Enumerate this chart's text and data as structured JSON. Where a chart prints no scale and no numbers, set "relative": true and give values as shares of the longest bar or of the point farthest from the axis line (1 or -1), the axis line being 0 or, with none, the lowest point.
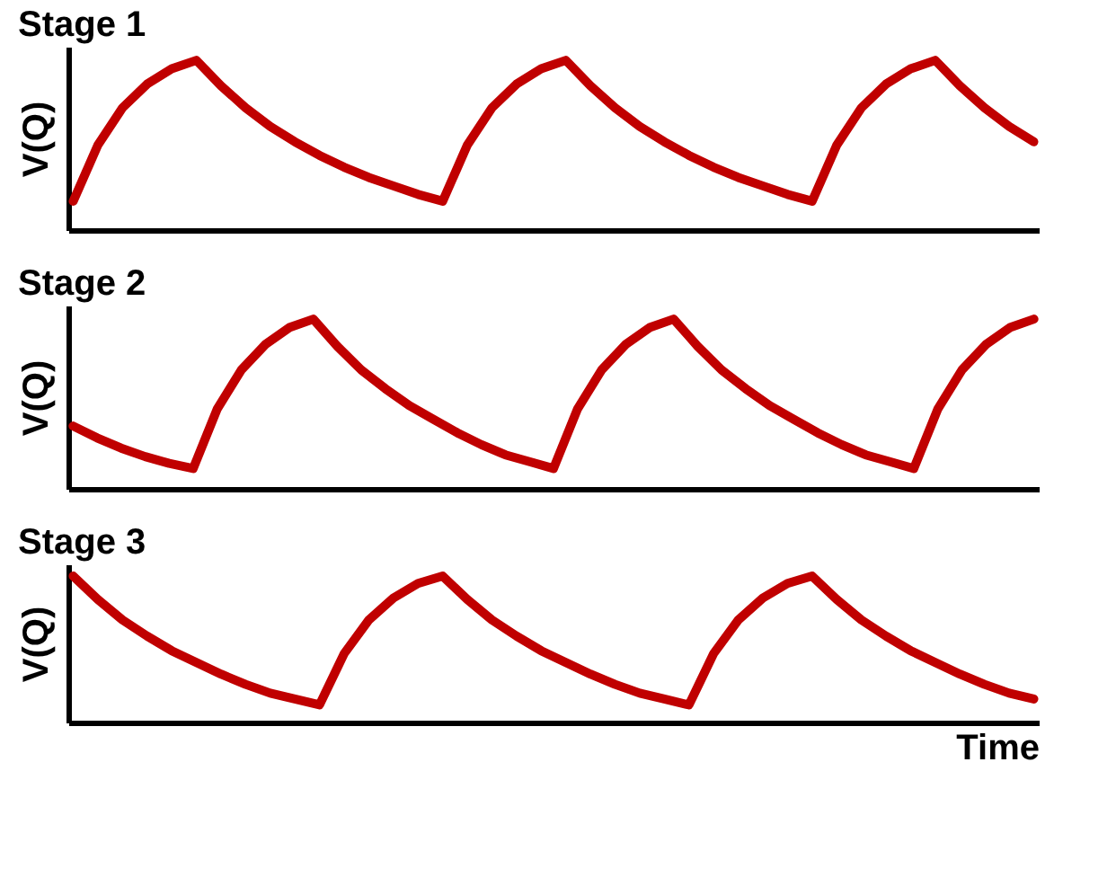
{
  "chart_data": [
    {
      "type": "line",
      "title": "Stage 1",
      "ylabel": "V(Q)",
      "relative": true,
      "tick_labels": false,
      "color": "#c00000",
      "categories": [
        null,
        null,
        null,
        null,
        null,
        null,
        null,
        null,
        null,
        null,
        null,
        null,
        null,
        null,
        null,
        null,
        null,
        null,
        null,
        null,
        null,
        null,
        null,
        null,
        null,
        null,
        null,
        null,
        null,
        null,
        null,
        null,
        null,
        null,
        null,
        null,
        null,
        null,
        null,
        null
      ],
      "values": [
        0.17,
        0.5,
        0.72,
        0.86,
        0.95,
        1,
        0.85,
        0.72,
        0.61,
        0.52,
        0.44,
        0.37,
        0.31,
        0.26,
        0.21,
        0.17,
        0.5,
        0.72,
        0.86,
        0.95,
        1,
        0.85,
        0.72,
        0.61,
        0.52,
        0.44,
        0.37,
        0.31,
        0.26,
        0.21,
        0.17,
        0.5,
        0.72,
        0.86,
        0.95,
        1,
        0.85,
        0.72,
        0.61,
        0.52
      ]
    },
    {
      "type": "line",
      "title": "Stage 2",
      "ylabel": "V(Q)",
      "relative": true,
      "tick_labels": false,
      "color": "#c00000",
      "categories": [
        null,
        null,
        null,
        null,
        null,
        null,
        null,
        null,
        null,
        null,
        null,
        null,
        null,
        null,
        null,
        null,
        null,
        null,
        null,
        null,
        null,
        null,
        null,
        null,
        null,
        null,
        null,
        null,
        null,
        null,
        null,
        null,
        null,
        null,
        null,
        null,
        null,
        null,
        null,
        null,
        null
      ],
      "values": [
        0.37,
        0.3,
        0.24,
        0.19,
        0.15,
        0.12,
        0.47,
        0.7,
        0.85,
        0.95,
        1,
        0.84,
        0.7,
        0.59,
        0.49,
        0.41,
        0.33,
        0.26,
        0.2,
        0.16,
        0.12,
        0.47,
        0.7,
        0.85,
        0.95,
        1,
        0.84,
        0.7,
        0.59,
        0.49,
        0.41,
        0.33,
        0.26,
        0.2,
        0.16,
        0.12,
        0.47,
        0.7,
        0.85,
        0.95,
        1
      ]
    },
    {
      "type": "line",
      "title": "Stage 3",
      "ylabel": "V(Q)",
      "xlabel": "Time",
      "relative": true,
      "tick_labels": false,
      "color": "#c00000",
      "categories": [
        null,
        null,
        null,
        null,
        null,
        null,
        null,
        null,
        null,
        null,
        null,
        null,
        null,
        null,
        null,
        null,
        null,
        null,
        null,
        null,
        null,
        null,
        null,
        null,
        null,
        null,
        null,
        null,
        null,
        null,
        null,
        null,
        null,
        null,
        null,
        null,
        null,
        null,
        null,
        null
      ],
      "values": [
        1,
        0.84,
        0.7,
        0.59,
        0.49,
        0.41,
        0.33,
        0.26,
        0.2,
        0.16,
        0.12,
        0.47,
        0.7,
        0.85,
        0.95,
        1,
        0.84,
        0.7,
        0.59,
        0.49,
        0.41,
        0.33,
        0.26,
        0.2,
        0.16,
        0.12,
        0.47,
        0.7,
        0.85,
        0.95,
        1,
        0.84,
        0.7,
        0.59,
        0.49,
        0.41,
        0.33,
        0.26,
        0.2,
        0.16
      ]
    }
  ]
}
